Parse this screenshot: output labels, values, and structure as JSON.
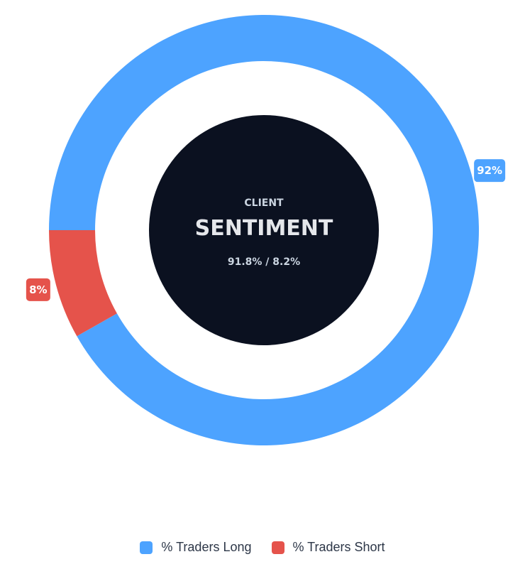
{
  "chart_data": {
    "type": "pie",
    "variant": "doughnut",
    "categories": [
      "% Traders Long",
      "% Traders Short"
    ],
    "values": [
      91.8,
      8.2
    ],
    "data_labels": [
      "92%",
      "8%"
    ],
    "colors": [
      "#4da3ff",
      "#e5534b"
    ],
    "center": {
      "subtitle": "CLIENT",
      "title": "SENTIMENT",
      "value_text": "91.8% / 8.2%",
      "background": "#0b1120"
    },
    "legend_placement": "bottom"
  }
}
